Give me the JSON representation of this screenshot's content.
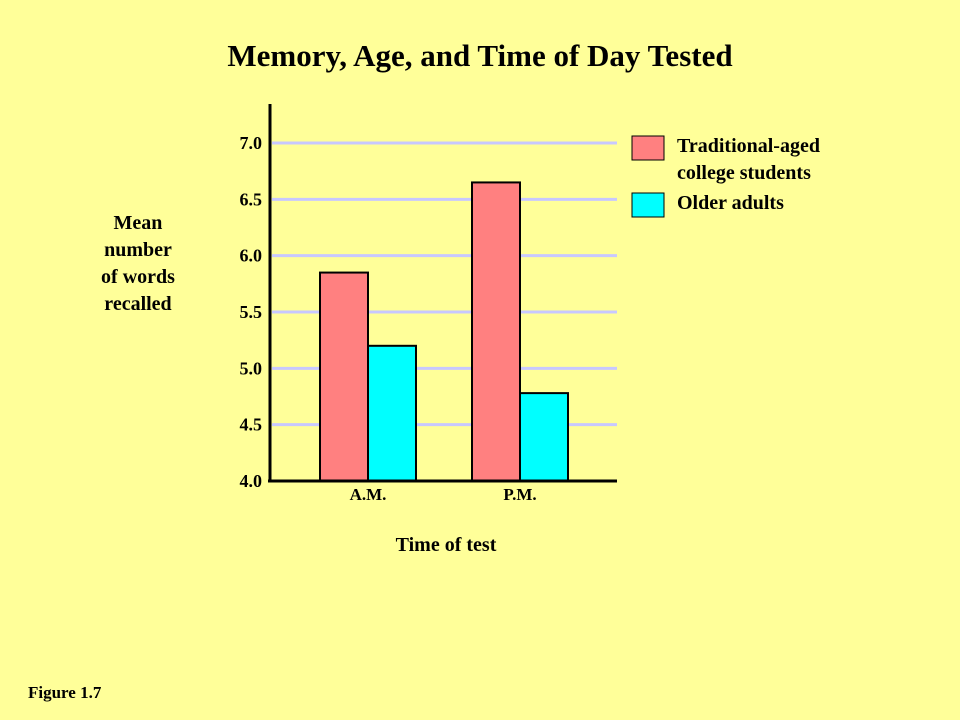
{
  "figure_label": "Figure 1.7",
  "colors": {
    "background": "#ffff99",
    "gridline": "#c8c8ff",
    "series_traditional": "#ff8080",
    "series_older": "#00ffff",
    "axis": "#000000"
  },
  "chart_data": {
    "type": "bar",
    "title": "Memory, Age, and Time of Day Tested",
    "xlabel": "Time of test",
    "ylabel_lines": [
      "Mean",
      "number",
      "of words",
      "recalled"
    ],
    "categories": [
      "A.M.",
      "P.M."
    ],
    "series": [
      {
        "name": "Traditional-aged college students",
        "name_lines": [
          "Traditional-aged",
          "college students"
        ],
        "values": [
          5.85,
          6.65
        ]
      },
      {
        "name": "Older adults",
        "name_lines": [
          "Older adults"
        ],
        "values": [
          5.2,
          4.78
        ]
      }
    ],
    "ylim": [
      4.0,
      7.0
    ],
    "yticks": [
      "4.0",
      "4.5",
      "5.0",
      "5.5",
      "6.0",
      "6.5",
      "7.0"
    ],
    "grid": true,
    "legend_position": "top-right"
  }
}
